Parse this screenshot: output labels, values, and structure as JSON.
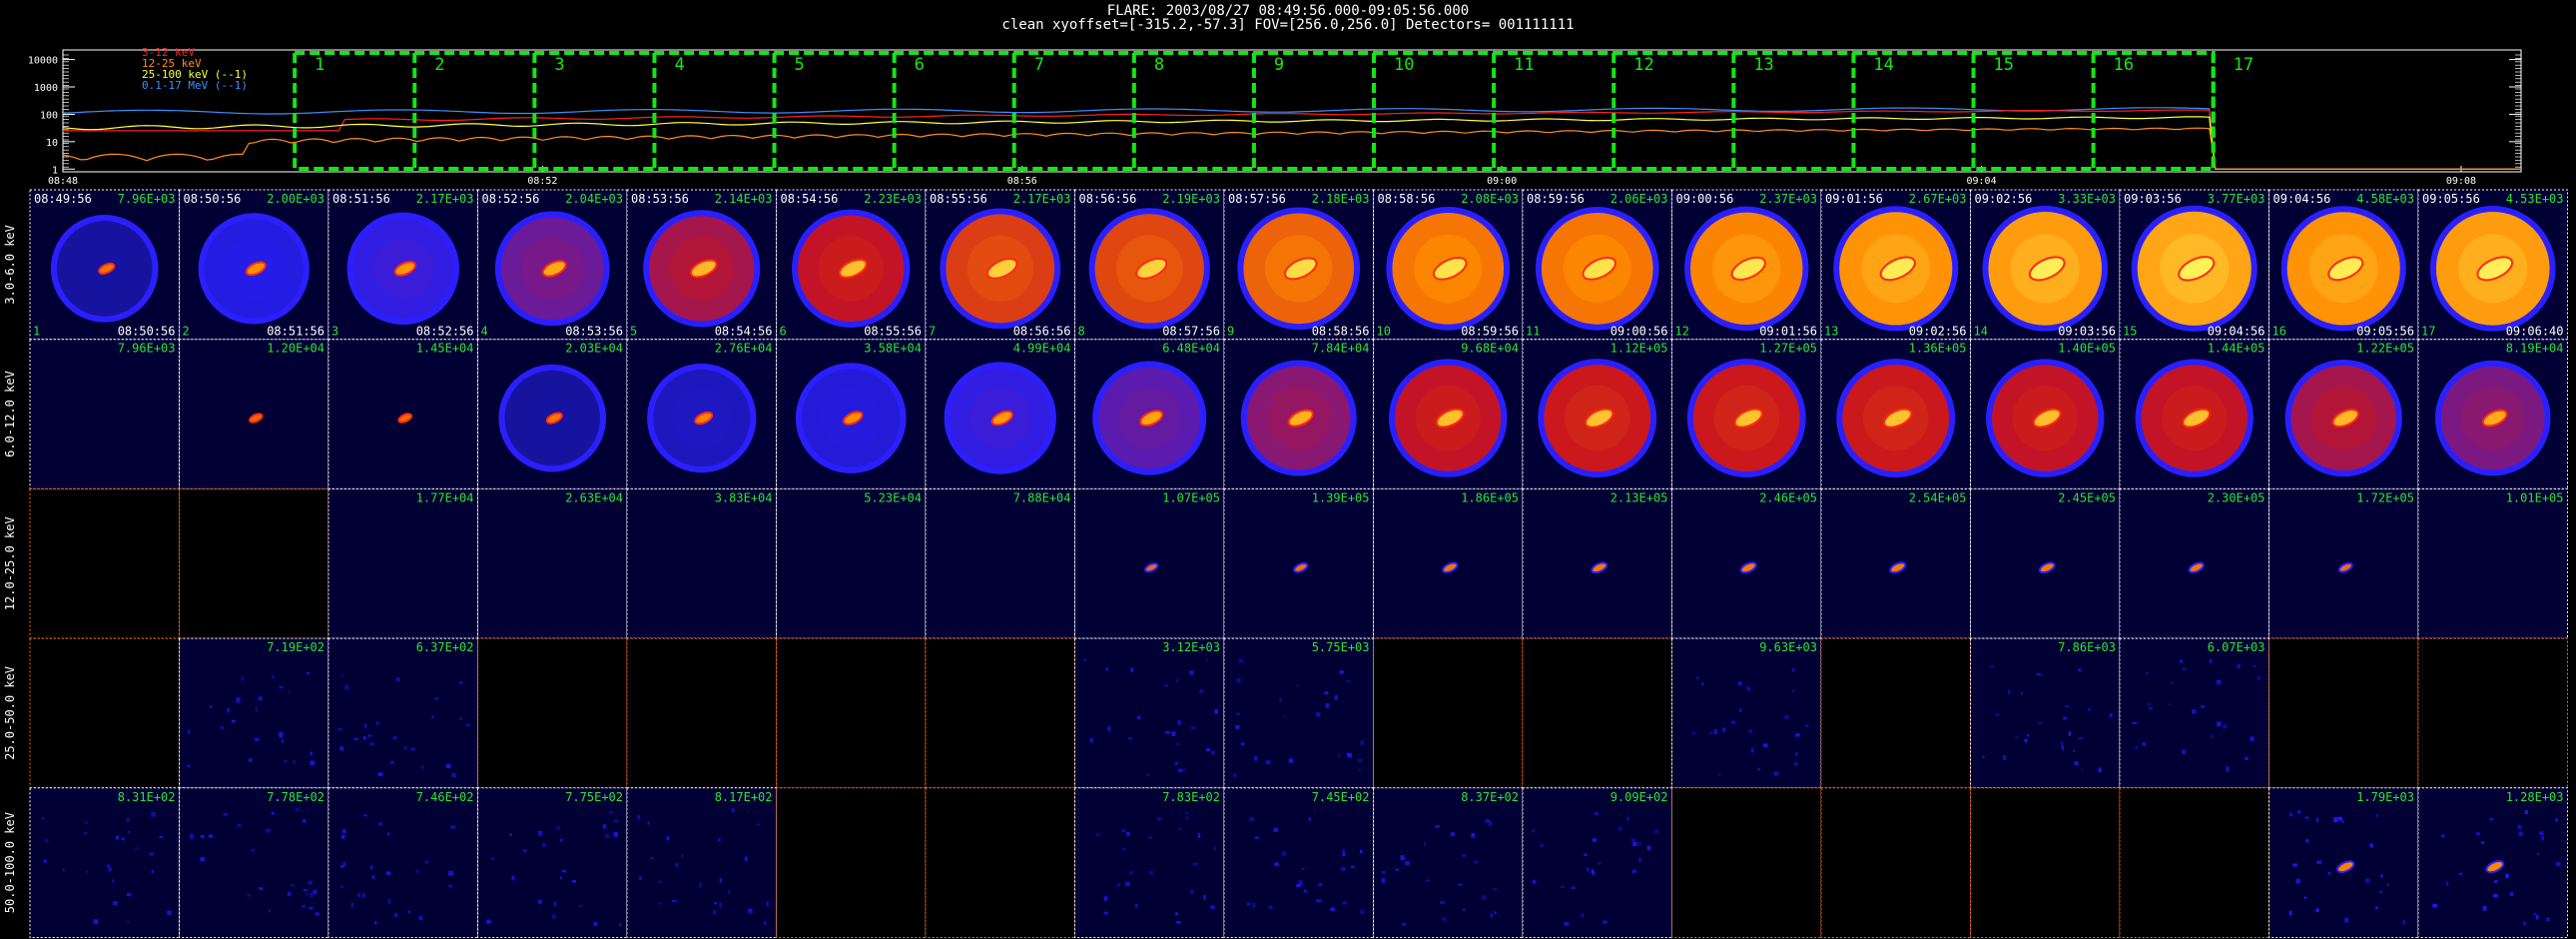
{
  "header": {
    "line1": "FLARE: 2003/08/27 08:49:56.000-09:05:56.000",
    "line2": "clean    xyoffset=[-315.2,-57.3]   FOV=[256.0,256.0]   Detectors= 001111111"
  },
  "lightcurve": {
    "y_ticks": [
      "10000",
      "1000",
      "100",
      "10",
      "1"
    ],
    "x_ticks": [
      "08:48",
      "08:52",
      "08:56",
      "09:00",
      "09:04",
      "09:08"
    ],
    "legend": [
      {
        "label": "3-12 keV",
        "color": "#ff2020"
      },
      {
        "label": "12-25 keV",
        "color": "#ff8c1a"
      },
      {
        "label": "25-100 keV (--1)",
        "color": "#ffff40"
      },
      {
        "label": "0.1-17 MeV (--1)",
        "color": "#3a8fff"
      }
    ],
    "interval_labels": [
      "1",
      "2",
      "3",
      "4",
      "5",
      "6",
      "7",
      "8",
      "9",
      "10",
      "11",
      "12",
      "13",
      "14",
      "15",
      "16",
      "17"
    ],
    "interval_color": "#14e614"
  },
  "image_grid": {
    "columns": 17,
    "row_labels": [
      "3.0-6.0 keV",
      "6.0-12.0 keV",
      "12.0-25.0 keV",
      "25.0-50.0 keV",
      "50.0-100.0 keV"
    ],
    "start_times": [
      "08:49:56",
      "08:50:56",
      "08:51:56",
      "08:52:56",
      "08:53:56",
      "08:54:56",
      "08:55:56",
      "08:56:56",
      "08:57:56",
      "08:58:56",
      "08:59:56",
      "09:00:56",
      "09:01:56",
      "09:02:56",
      "09:03:56",
      "09:04:56",
      "09:05:56"
    ],
    "end_times": [
      "08:50:56",
      "08:51:56",
      "08:52:56",
      "08:53:56",
      "08:54:56",
      "08:55:56",
      "08:56:56",
      "08:57:56",
      "08:58:56",
      "08:59:56",
      "09:00:56",
      "09:01:56",
      "09:02:56",
      "09:03:56",
      "09:04:56",
      "09:05:56",
      "09:06:40"
    ],
    "rows": [
      {
        "maxima": [
          "7.96E+03",
          "2.00E+03",
          "2.17E+03",
          "2.04E+03",
          "2.14E+03",
          "2.23E+03",
          "2.17E+03",
          "2.19E+03",
          "2.18E+03",
          "2.08E+03",
          "2.06E+03",
          "2.37E+03",
          "2.67E+03",
          "3.33E+03",
          "3.77E+03",
          "4.58E+03",
          "4.53E+03"
        ],
        "intensity": [
          0.15,
          0.3,
          0.35,
          0.45,
          0.55,
          0.6,
          0.7,
          0.72,
          0.78,
          0.82,
          0.82,
          0.85,
          0.88,
          0.9,
          0.92,
          0.88,
          0.9
        ]
      },
      {
        "maxima": [
          "7.96E+03",
          "1.20E+04",
          "1.45E+04",
          "2.03E+04",
          "2.76E+04",
          "3.58E+04",
          "4.99E+04",
          "6.48E+04",
          "7.84E+04",
          "9.68E+04",
          "1.12E+05",
          "1.27E+05",
          "1.36E+05",
          "1.40E+05",
          "1.44E+05",
          "1.22E+05",
          "8.19E+04"
        ],
        "intensity": [
          0,
          0.05,
          0.06,
          0.15,
          0.22,
          0.28,
          0.35,
          0.42,
          0.5,
          0.6,
          0.62,
          0.62,
          0.62,
          0.6,
          0.6,
          0.55,
          0.48
        ]
      },
      {
        "maxima": [
          "",
          "",
          "1.77E+04",
          "2.63E+04",
          "3.83E+04",
          "5.23E+04",
          "7.88E+04",
          "1.07E+05",
          "1.39E+05",
          "1.86E+05",
          "2.13E+05",
          "2.46E+05",
          "2.54E+05",
          "2.45E+05",
          "2.30E+05",
          "1.72E+05",
          "1.01E+05"
        ],
        "intensity": [
          0,
          0,
          0,
          0,
          0,
          0,
          0,
          0.05,
          0.08,
          0.12,
          0.14,
          0.15,
          0.15,
          0.14,
          0.12,
          0.07,
          0.04
        ],
        "blank": [
          true,
          true,
          false,
          false,
          false,
          false,
          false,
          false,
          false,
          false,
          false,
          false,
          false,
          false,
          false,
          false,
          false
        ]
      },
      {
        "maxima": [
          "",
          "7.19E+02",
          "6.37E+02",
          "",
          "",
          "",
          "",
          "3.12E+03",
          "5.75E+03",
          "",
          "",
          "9.63E+03",
          "",
          "7.86E+03",
          "6.07E+03",
          "",
          ""
        ],
        "intensity": [
          0,
          0,
          0,
          0,
          0,
          0,
          0,
          0,
          0,
          0,
          0,
          0,
          0,
          0,
          0,
          0,
          0
        ],
        "blank": [
          true,
          false,
          false,
          true,
          true,
          true,
          true,
          false,
          false,
          true,
          true,
          false,
          true,
          false,
          false,
          true,
          true
        ]
      },
      {
        "maxima": [
          "8.31E+02",
          "7.78E+02",
          "7.46E+02",
          "7.75E+02",
          "8.17E+02",
          "",
          "",
          "7.83E+02",
          "7.45E+02",
          "8.37E+02",
          "9.09E+02",
          "",
          "",
          "",
          "",
          "1.79E+03",
          "1.28E+03"
        ],
        "intensity": [
          0,
          0,
          0,
          0,
          0,
          0,
          0,
          0,
          0,
          0,
          0,
          0,
          0,
          0,
          0,
          0.2,
          0.22
        ],
        "blank": [
          false,
          false,
          false,
          false,
          false,
          true,
          true,
          false,
          false,
          false,
          false,
          true,
          true,
          true,
          true,
          false,
          false
        ]
      }
    ]
  }
}
